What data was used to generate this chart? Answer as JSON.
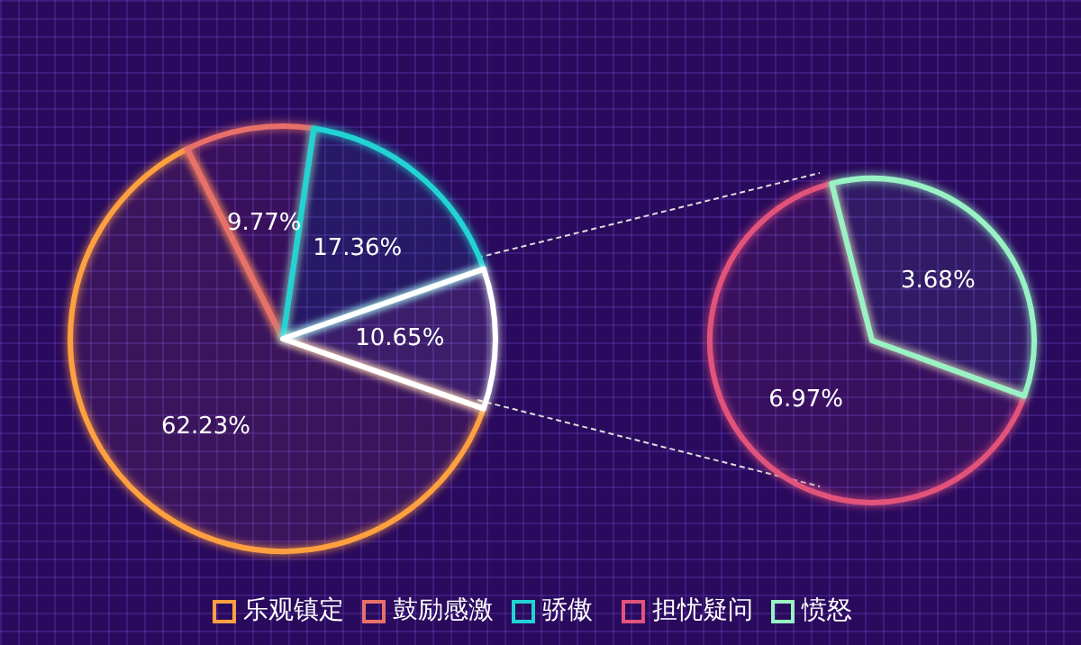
{
  "chart_data": [
    {
      "type": "pie",
      "categories": [
        "乐观镇定",
        "鼓励感激",
        "骄傲",
        null
      ],
      "values": [
        62.23,
        9.77,
        17.36,
        10.65
      ],
      "colors": [
        "#ffa040",
        "#e8706a",
        "#22d3d3",
        "#ffffff"
      ],
      "value_labels": [
        "62.23%",
        "9.77%",
        "17.36%",
        "10.65%"
      ],
      "legend": "bottom"
    },
    {
      "type": "pie",
      "categories": [
        "担忧疑问",
        "愤怒"
      ],
      "values": [
        6.97,
        3.68
      ],
      "colors": [
        "#e2527c",
        "#98f2c4"
      ],
      "value_labels": [
        "6.97%",
        "3.68%"
      ],
      "legend": "bottom"
    }
  ]
}
